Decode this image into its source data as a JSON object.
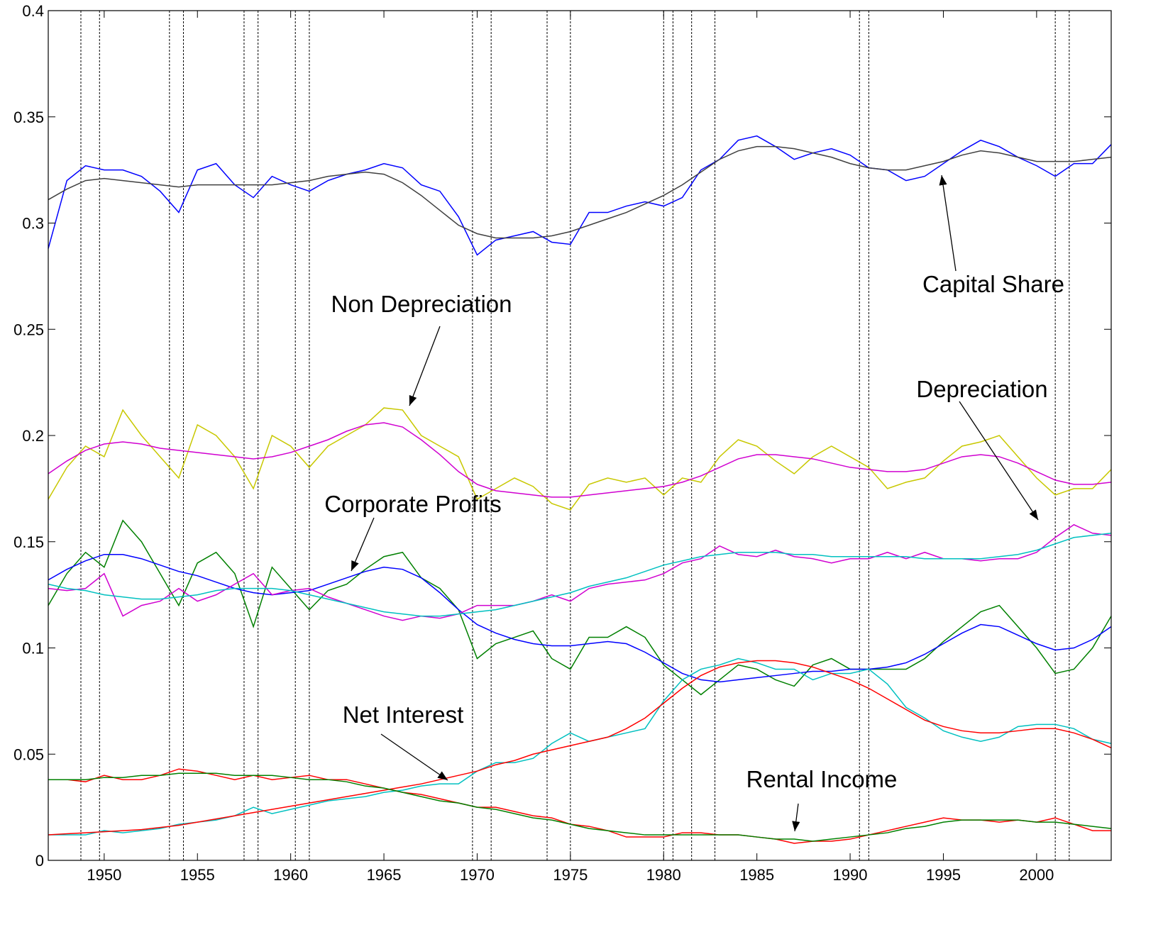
{
  "chart_data": {
    "type": "line",
    "x": [
      1947,
      1948,
      1949,
      1950,
      1951,
      1952,
      1953,
      1954,
      1955,
      1956,
      1957,
      1958,
      1959,
      1960,
      1961,
      1962,
      1963,
      1964,
      1965,
      1966,
      1967,
      1968,
      1969,
      1970,
      1971,
      1972,
      1973,
      1974,
      1975,
      1976,
      1977,
      1978,
      1979,
      1980,
      1981,
      1982,
      1983,
      1984,
      1985,
      1986,
      1987,
      1988,
      1989,
      1990,
      1991,
      1992,
      1993,
      1994,
      1995,
      1996,
      1997,
      1998,
      1999,
      2000,
      2001,
      2002,
      2003,
      2004
    ],
    "xlim": [
      1947,
      2004
    ],
    "xticks": [
      1950,
      1955,
      1960,
      1965,
      1970,
      1975,
      1980,
      1985,
      1990,
      1995,
      2000
    ],
    "ylim": [
      0,
      0.4
    ],
    "yticks": [
      0,
      0.05,
      0.1,
      0.15,
      0.2,
      0.25,
      0.3,
      0.35,
      0.4
    ],
    "recessions": [
      1948.75,
      1949.75,
      1953.5,
      1954.25,
      1957.5,
      1958.25,
      1960.25,
      1961,
      1969.75,
      1970.75,
      1973.75,
      1975,
      1980,
      1980.5,
      1981.5,
      1982.75,
      1990.5,
      1991,
      2001,
      2001.75
    ],
    "series": [
      {
        "color": "#0000ff",
        "values": [
          0.288,
          0.32,
          0.327,
          0.325,
          0.325,
          0.322,
          0.315,
          0.305,
          0.325,
          0.328,
          0.318,
          0.312,
          0.322,
          0.318,
          0.315,
          0.32,
          0.323,
          0.325,
          0.328,
          0.326,
          0.318,
          0.315,
          0.303,
          0.285,
          0.292,
          0.294,
          0.296,
          0.291,
          0.29,
          0.305,
          0.305,
          0.308,
          0.31,
          0.308,
          0.312,
          0.325,
          0.33,
          0.339,
          0.341,
          0.336,
          0.33,
          0.333,
          0.335,
          0.332,
          0.326,
          0.325,
          0.32,
          0.322,
          0.328,
          0.334,
          0.339,
          0.336,
          0.331,
          0.327,
          0.322,
          0.328,
          0.328,
          0.337
        ]
      },
      {
        "color": "#404040",
        "values": [
          0.311,
          0.316,
          0.32,
          0.321,
          0.32,
          0.319,
          0.318,
          0.317,
          0.318,
          0.318,
          0.318,
          0.318,
          0.318,
          0.319,
          0.32,
          0.322,
          0.323,
          0.324,
          0.323,
          0.319,
          0.313,
          0.306,
          0.299,
          0.295,
          0.293,
          0.293,
          0.293,
          0.294,
          0.296,
          0.299,
          0.302,
          0.305,
          0.309,
          0.313,
          0.318,
          0.324,
          0.33,
          0.334,
          0.336,
          0.336,
          0.335,
          0.333,
          0.331,
          0.328,
          0.326,
          0.325,
          0.325,
          0.327,
          0.329,
          0.332,
          0.334,
          0.333,
          0.331,
          0.329,
          0.329,
          0.329,
          0.33,
          0.331
        ]
      },
      {
        "color": "#c8c800",
        "values": [
          0.17,
          0.185,
          0.195,
          0.19,
          0.212,
          0.2,
          0.19,
          0.18,
          0.205,
          0.2,
          0.19,
          0.175,
          0.2,
          0.195,
          0.185,
          0.195,
          0.2,
          0.205,
          0.213,
          0.212,
          0.2,
          0.195,
          0.19,
          0.17,
          0.175,
          0.18,
          0.176,
          0.168,
          0.165,
          0.177,
          0.18,
          0.178,
          0.18,
          0.172,
          0.18,
          0.178,
          0.19,
          0.198,
          0.195,
          0.188,
          0.182,
          0.19,
          0.195,
          0.19,
          0.185,
          0.175,
          0.178,
          0.18,
          0.188,
          0.195,
          0.197,
          0.2,
          0.19,
          0.18,
          0.172,
          0.175,
          0.175,
          0.184
        ]
      },
      {
        "color": "#d000d0",
        "values": [
          0.182,
          0.188,
          0.193,
          0.196,
          0.197,
          0.196,
          0.194,
          0.193,
          0.192,
          0.191,
          0.19,
          0.189,
          0.19,
          0.192,
          0.195,
          0.198,
          0.202,
          0.205,
          0.206,
          0.204,
          0.198,
          0.191,
          0.183,
          0.177,
          0.174,
          0.173,
          0.172,
          0.171,
          0.171,
          0.172,
          0.173,
          0.174,
          0.175,
          0.176,
          0.178,
          0.181,
          0.185,
          0.189,
          0.191,
          0.191,
          0.19,
          0.189,
          0.187,
          0.185,
          0.184,
          0.183,
          0.183,
          0.184,
          0.187,
          0.19,
          0.191,
          0.19,
          0.187,
          0.183,
          0.179,
          0.177,
          0.177,
          0.178
        ]
      },
      {
        "color": "#008000",
        "values": [
          0.12,
          0.135,
          0.145,
          0.138,
          0.16,
          0.15,
          0.135,
          0.12,
          0.14,
          0.145,
          0.135,
          0.11,
          0.138,
          0.128,
          0.118,
          0.127,
          0.13,
          0.137,
          0.143,
          0.145,
          0.133,
          0.128,
          0.118,
          0.095,
          0.102,
          0.105,
          0.108,
          0.095,
          0.09,
          0.105,
          0.105,
          0.11,
          0.105,
          0.092,
          0.085,
          0.078,
          0.085,
          0.092,
          0.09,
          0.085,
          0.082,
          0.092,
          0.095,
          0.09,
          0.09,
          0.09,
          0.09,
          0.095,
          0.103,
          0.11,
          0.117,
          0.12,
          0.11,
          0.1,
          0.088,
          0.09,
          0.1,
          0.115
        ]
      },
      {
        "color": "#0000ff",
        "values": [
          0.132,
          0.137,
          0.141,
          0.144,
          0.144,
          0.142,
          0.139,
          0.136,
          0.134,
          0.131,
          0.128,
          0.126,
          0.125,
          0.126,
          0.127,
          0.13,
          0.133,
          0.136,
          0.138,
          0.137,
          0.133,
          0.126,
          0.118,
          0.111,
          0.107,
          0.104,
          0.102,
          0.101,
          0.101,
          0.102,
          0.103,
          0.102,
          0.098,
          0.093,
          0.088,
          0.085,
          0.084,
          0.085,
          0.086,
          0.087,
          0.088,
          0.089,
          0.089,
          0.09,
          0.09,
          0.091,
          0.093,
          0.097,
          0.102,
          0.107,
          0.111,
          0.11,
          0.106,
          0.102,
          0.099,
          0.1,
          0.104,
          0.11
        ]
      },
      {
        "color": "#d000d0",
        "values": [
          0.128,
          0.127,
          0.128,
          0.135,
          0.115,
          0.12,
          0.122,
          0.128,
          0.122,
          0.125,
          0.13,
          0.135,
          0.125,
          0.127,
          0.128,
          0.124,
          0.121,
          0.118,
          0.115,
          0.113,
          0.115,
          0.114,
          0.116,
          0.12,
          0.12,
          0.12,
          0.122,
          0.125,
          0.122,
          0.128,
          0.13,
          0.131,
          0.132,
          0.135,
          0.14,
          0.142,
          0.148,
          0.144,
          0.143,
          0.146,
          0.143,
          0.142,
          0.14,
          0.142,
          0.142,
          0.145,
          0.142,
          0.145,
          0.142,
          0.142,
          0.141,
          0.142,
          0.142,
          0.145,
          0.152,
          0.158,
          0.154,
          0.153
        ]
      },
      {
        "color": "#00c0c0",
        "values": [
          0.13,
          0.128,
          0.127,
          0.125,
          0.124,
          0.123,
          0.123,
          0.124,
          0.125,
          0.127,
          0.128,
          0.128,
          0.128,
          0.127,
          0.125,
          0.123,
          0.121,
          0.119,
          0.117,
          0.116,
          0.115,
          0.115,
          0.116,
          0.117,
          0.118,
          0.12,
          0.122,
          0.124,
          0.126,
          0.129,
          0.131,
          0.133,
          0.136,
          0.139,
          0.141,
          0.143,
          0.144,
          0.145,
          0.145,
          0.145,
          0.144,
          0.144,
          0.143,
          0.143,
          0.143,
          0.143,
          0.143,
          0.142,
          0.142,
          0.142,
          0.142,
          0.143,
          0.144,
          0.146,
          0.149,
          0.152,
          0.153,
          0.154
        ]
      },
      {
        "color": "#00c0c0",
        "values": [
          0.012,
          0.012,
          0.012,
          0.014,
          0.013,
          0.014,
          0.015,
          0.017,
          0.018,
          0.019,
          0.021,
          0.025,
          0.022,
          0.024,
          0.026,
          0.028,
          0.029,
          0.03,
          0.032,
          0.033,
          0.035,
          0.036,
          0.036,
          0.042,
          0.046,
          0.046,
          0.048,
          0.055,
          0.06,
          0.056,
          0.058,
          0.06,
          0.062,
          0.075,
          0.085,
          0.09,
          0.092,
          0.095,
          0.093,
          0.09,
          0.09,
          0.085,
          0.088,
          0.088,
          0.09,
          0.083,
          0.072,
          0.067,
          0.061,
          0.058,
          0.056,
          0.058,
          0.063,
          0.064,
          0.064,
          0.062,
          0.057,
          0.055
        ]
      },
      {
        "color": "#ff0000",
        "values": [
          0.012,
          0.0125,
          0.013,
          0.0135,
          0.014,
          0.0145,
          0.0155,
          0.0165,
          0.018,
          0.0195,
          0.021,
          0.0225,
          0.024,
          0.0255,
          0.027,
          0.0285,
          0.03,
          0.0315,
          0.033,
          0.0345,
          0.036,
          0.038,
          0.04,
          0.042,
          0.045,
          0.047,
          0.05,
          0.052,
          0.054,
          0.056,
          0.058,
          0.062,
          0.067,
          0.074,
          0.081,
          0.087,
          0.091,
          0.093,
          0.094,
          0.094,
          0.093,
          0.091,
          0.088,
          0.085,
          0.081,
          0.076,
          0.071,
          0.066,
          0.063,
          0.061,
          0.06,
          0.06,
          0.061,
          0.062,
          0.062,
          0.06,
          0.057,
          0.053
        ]
      },
      {
        "color": "#ff0000",
        "values": [
          0.038,
          0.038,
          0.037,
          0.04,
          0.038,
          0.038,
          0.04,
          0.043,
          0.042,
          0.04,
          0.038,
          0.04,
          0.038,
          0.039,
          0.04,
          0.038,
          0.038,
          0.036,
          0.034,
          0.032,
          0.031,
          0.029,
          0.027,
          0.025,
          0.025,
          0.023,
          0.021,
          0.02,
          0.017,
          0.016,
          0.014,
          0.011,
          0.011,
          0.011,
          0.013,
          0.013,
          0.012,
          0.012,
          0.011,
          0.01,
          0.008,
          0.009,
          0.009,
          0.01,
          0.012,
          0.014,
          0.016,
          0.018,
          0.02,
          0.019,
          0.019,
          0.018,
          0.019,
          0.018,
          0.02,
          0.017,
          0.014,
          0.014
        ]
      },
      {
        "color": "#008000",
        "values": [
          0.038,
          0.038,
          0.038,
          0.039,
          0.039,
          0.04,
          0.04,
          0.041,
          0.041,
          0.041,
          0.04,
          0.04,
          0.04,
          0.039,
          0.038,
          0.038,
          0.037,
          0.035,
          0.034,
          0.032,
          0.03,
          0.028,
          0.027,
          0.025,
          0.024,
          0.022,
          0.02,
          0.019,
          0.017,
          0.015,
          0.014,
          0.013,
          0.012,
          0.012,
          0.012,
          0.012,
          0.012,
          0.012,
          0.011,
          0.01,
          0.01,
          0.009,
          0.01,
          0.011,
          0.012,
          0.013,
          0.015,
          0.016,
          0.018,
          0.019,
          0.019,
          0.019,
          0.019,
          0.018,
          0.018,
          0.017,
          0.016,
          0.015
        ]
      }
    ],
    "annotations": [
      {
        "text": "Capital Share"
      },
      {
        "text": "Non Depreciation"
      },
      {
        "text": "Depreciation"
      },
      {
        "text": "Corporate Profits"
      },
      {
        "text": "Net Interest"
      },
      {
        "text": "Rental Income"
      }
    ]
  }
}
